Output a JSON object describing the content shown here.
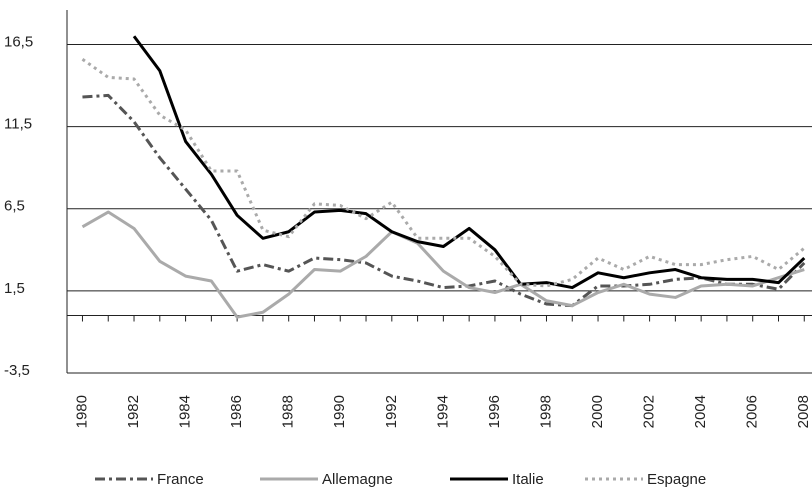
{
  "chart_data": {
    "type": "line",
    "x": [
      1980,
      1981,
      1982,
      1983,
      1984,
      1985,
      1986,
      1987,
      1988,
      1989,
      1990,
      1991,
      1992,
      1993,
      1994,
      1995,
      1996,
      1997,
      1998,
      1999,
      2000,
      2001,
      2002,
      2003,
      2004,
      2005,
      2006,
      2007,
      2008
    ],
    "series": [
      {
        "name": "France",
        "color": "#555555",
        "dash": "dashdot",
        "values": [
          13.3,
          13.4,
          11.8,
          9.6,
          7.7,
          5.8,
          2.7,
          3.1,
          2.7,
          3.5,
          3.4,
          3.2,
          2.4,
          2.1,
          1.7,
          1.8,
          2.1,
          1.3,
          0.7,
          0.6,
          1.8,
          1.8,
          1.9,
          2.2,
          2.3,
          1.9,
          1.9,
          1.6,
          3.2
        ]
      },
      {
        "name": "Allemagne",
        "color": "#aaaaaa",
        "dash": "solid",
        "values": [
          5.4,
          6.3,
          5.3,
          3.3,
          2.4,
          2.1,
          -0.1,
          0.2,
          1.3,
          2.8,
          2.7,
          3.6,
          5.1,
          4.4,
          2.7,
          1.7,
          1.4,
          1.9,
          0.9,
          0.6,
          1.4,
          1.9,
          1.3,
          1.1,
          1.8,
          1.9,
          1.8,
          2.3,
          2.8
        ]
      },
      {
        "name": "Italie",
        "color": "#000000",
        "dash": "solid",
        "values": [
          null,
          null,
          17.0,
          14.9,
          10.6,
          8.6,
          6.1,
          4.7,
          5.1,
          6.3,
          6.4,
          6.2,
          5.1,
          4.5,
          4.2,
          5.3,
          4.0,
          1.9,
          2.0,
          1.7,
          2.6,
          2.3,
          2.6,
          2.8,
          2.3,
          2.2,
          2.2,
          2.0,
          3.5
        ]
      },
      {
        "name": "Espagne",
        "color": "#aaaaaa",
        "dash": "dot",
        "values": [
          15.6,
          14.5,
          14.4,
          12.2,
          11.3,
          8.8,
          8.8,
          5.2,
          4.8,
          6.8,
          6.7,
          5.9,
          6.9,
          4.7,
          4.7,
          4.7,
          3.6,
          1.9,
          1.8,
          2.2,
          3.5,
          2.8,
          3.6,
          3.1,
          3.1,
          3.4,
          3.6,
          2.8,
          4.1
        ]
      }
    ],
    "xlim": [
      1979.4,
      2008.3
    ],
    "xticks": [
      1980,
      1982,
      1984,
      1986,
      1988,
      1990,
      1992,
      1994,
      1996,
      1998,
      2000,
      2002,
      2004,
      2006,
      2008
    ],
    "ylim": [
      -3.5,
      18.6
    ],
    "yticks": [
      {
        "value": -3.5,
        "label": "-3,5"
      },
      {
        "value": 1.5,
        "label": "1,5"
      },
      {
        "value": 6.5,
        "label": "6,5"
      },
      {
        "value": 11.5,
        "label": "11,5"
      },
      {
        "value": 16.5,
        "label": "16,5"
      }
    ],
    "grid": true,
    "legend": "bottom"
  }
}
